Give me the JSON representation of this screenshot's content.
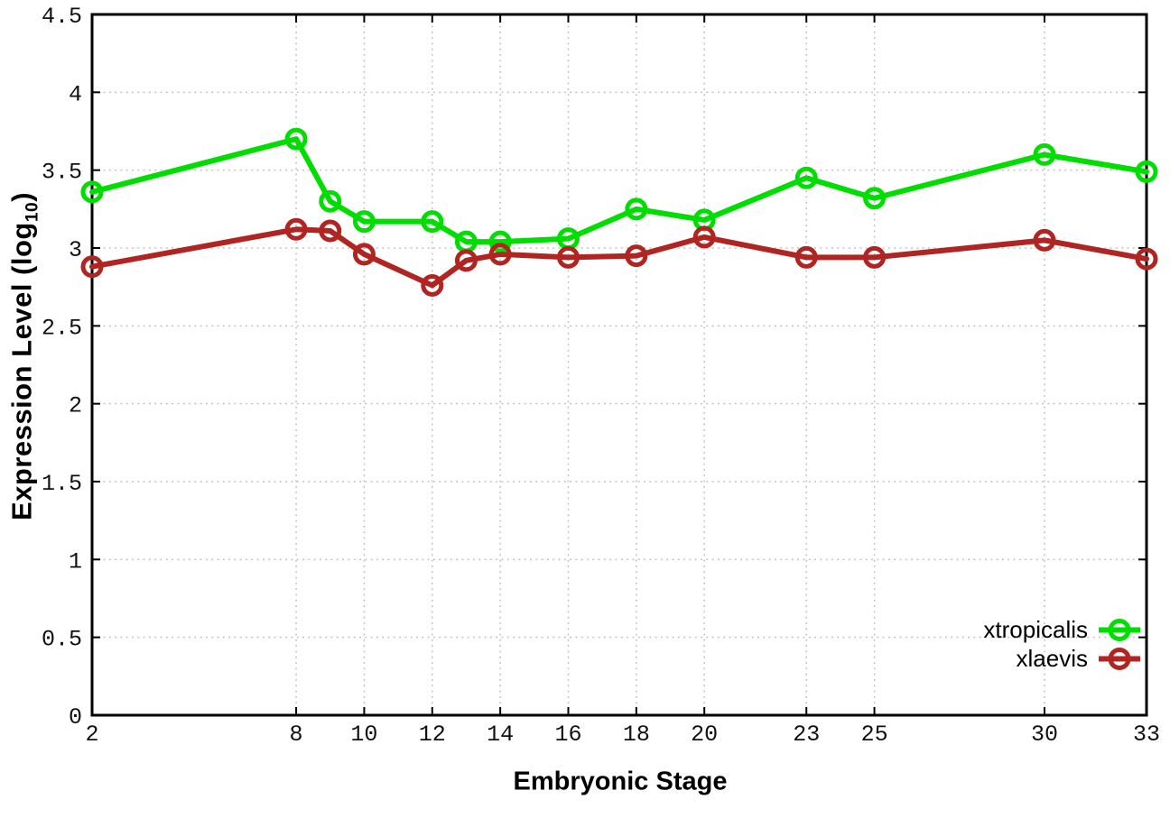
{
  "chart_data": {
    "type": "line",
    "title": "",
    "xlabel": "Embryonic Stage",
    "ylabel": "Expression Level (log10)",
    "ylabel_parts": {
      "prefix": "Expression Level (log",
      "sub": "10",
      "suffix": ")"
    },
    "xlim": [
      2,
      33
    ],
    "ylim": [
      0,
      4.5
    ],
    "x_ticks": [
      2,
      8,
      10,
      12,
      14,
      16,
      18,
      20,
      23,
      25,
      30,
      33
    ],
    "x_tick_labels": [
      "2",
      "8",
      "10",
      "12",
      "14",
      "16",
      "18",
      "20",
      "23",
      "25",
      "30",
      "33"
    ],
    "y_ticks": [
      0,
      0.5,
      1,
      1.5,
      2,
      2.5,
      3,
      3.5,
      4,
      4.5
    ],
    "y_tick_labels": [
      "0",
      "0.5",
      "1",
      "1.5",
      "2",
      "2.5",
      "3",
      "3.5",
      "4",
      "4.5"
    ],
    "grid": true,
    "grid_style": "dotted",
    "legend_position": "bottom-right",
    "x": [
      2,
      8,
      9,
      10,
      12,
      13,
      14,
      16,
      18,
      20,
      23,
      25,
      30,
      33
    ],
    "series": [
      {
        "name": "xtropicalis",
        "color": "#00dd00",
        "marker": "open-circle",
        "values": [
          3.36,
          3.7,
          3.3,
          3.17,
          3.17,
          3.04,
          3.04,
          3.06,
          3.25,
          3.18,
          3.45,
          3.32,
          3.6,
          3.49
        ]
      },
      {
        "name": "xlaevis",
        "color": "#b02421",
        "marker": "open-circle",
        "values": [
          2.88,
          3.12,
          3.11,
          2.96,
          2.76,
          2.92,
          2.96,
          2.94,
          2.95,
          3.07,
          2.94,
          2.94,
          3.05,
          2.93
        ]
      }
    ],
    "frame_color": "#000000",
    "grid_color": "#bdbdbd"
  }
}
